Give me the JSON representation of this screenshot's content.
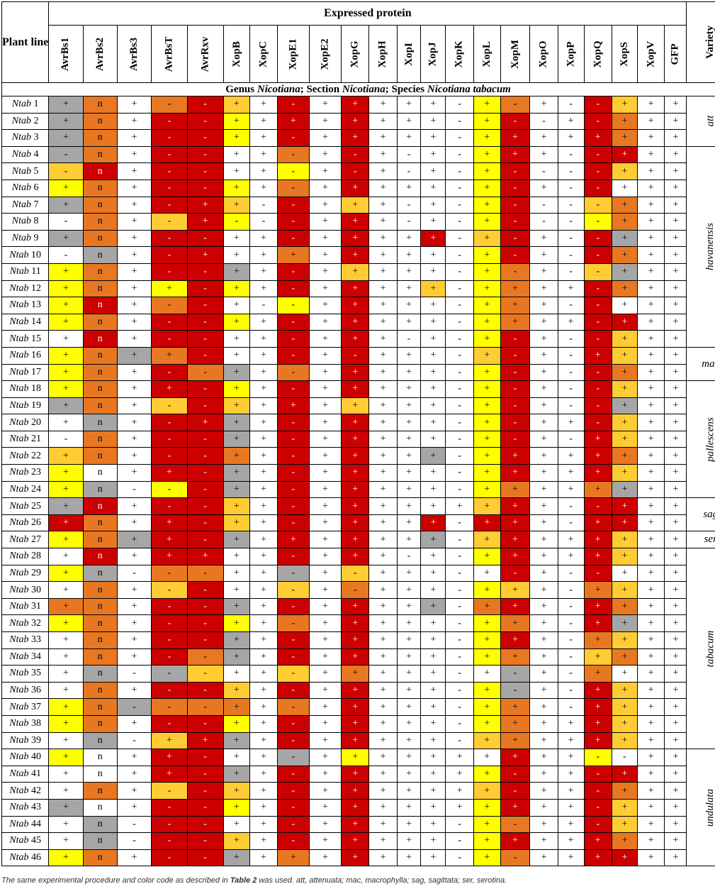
{
  "header": {
    "expressed_protein": "Expressed protein",
    "plant_line": "Plant line",
    "variety": "Variety",
    "proteins": [
      "AvrBs1",
      "AvrBs2",
      "AvrBs3",
      "AvrBsT",
      "AvrRxv",
      "XopB",
      "XopC",
      "XopE1",
      "XopE2",
      "XopG",
      "XopH",
      "XopI",
      "XopJ",
      "XopK",
      "XopL",
      "XopM",
      "XopO",
      "XopP",
      "XopQ",
      "XopS",
      "XopV",
      "GFP"
    ]
  },
  "genus_row": {
    "p1": "Genus ",
    "g": "Nicotiana",
    "p2": "; Section ",
    "s": "Nicotiana",
    "p3": "; Species ",
    "sp": "Nicotiana tabacum"
  },
  "colors": {
    "W": "#ffffff",
    "Y": "#ffff00",
    "y": "#ffcc33",
    "O": "#e87722",
    "R": "#cc0000",
    "G": "#a6a6a6"
  },
  "varieties": [
    {
      "name": "att",
      "rows": 3
    },
    {
      "name": "havanensis",
      "rows": 12
    },
    {
      "name": "mac",
      "rows": 2
    },
    {
      "name": "pallescens",
      "rows": 7
    },
    {
      "name": "sag",
      "rows": 2
    },
    {
      "name": "ser",
      "rows": 1
    },
    {
      "name": "tabacum",
      "rows": 12
    },
    {
      "name": "undulata",
      "rows": 7
    }
  ],
  "rows": [
    {
      "line": "Ntab",
      "num": "1",
      "cells": [
        "+G",
        "nO",
        "+W",
        "-O",
        "-R",
        "+y",
        "+W",
        "-R",
        "+W",
        "+R",
        "+W",
        "+W",
        "+W",
        "-W",
        "+Y",
        "-O",
        "+W",
        "-W",
        "-R",
        "+y",
        "+W",
        "+W"
      ]
    },
    {
      "line": "Ntab",
      "num": "2",
      "cells": [
        "+G",
        "nO",
        "+W",
        "-R",
        "-R",
        "+Y",
        "+W",
        "+R",
        "+W",
        "+R",
        "+W",
        "+W",
        "+W",
        "-W",
        "+Y",
        "-R",
        "-W",
        "+W",
        "-R",
        "+O",
        "+W",
        "+W"
      ]
    },
    {
      "line": "Ntab",
      "num": "3",
      "cells": [
        "+G",
        "nO",
        "+W",
        "-R",
        "-R",
        "+Y",
        "+W",
        "-R",
        "+W",
        "+R",
        "+W",
        "+W",
        "+W",
        "-W",
        "+Y",
        "+R",
        "+W",
        "+W",
        "+R",
        "+O",
        "+W",
        "+W"
      ]
    },
    {
      "line": "Ntab",
      "num": "4",
      "cells": [
        "-G",
        "nO",
        "+W",
        "-R",
        "-R",
        "+W",
        "+W",
        "-O",
        "+W",
        "-R",
        "+W",
        "-W",
        "+W",
        "-W",
        "+Y",
        "+R",
        "+W",
        "-W",
        "-R",
        "+R",
        "+W",
        "+W"
      ]
    },
    {
      "line": "Ntab",
      "num": "5",
      "cells": [
        "-y",
        "nR",
        "+W",
        "-R",
        "-R",
        "+W",
        "+W",
        "-Y",
        "+W",
        "-R",
        "+W",
        "-W",
        "+W",
        "-W",
        "+Y",
        "-R",
        "-W",
        "-W",
        "-R",
        "+y",
        "+W",
        "+W"
      ]
    },
    {
      "line": "Ntab",
      "num": "6",
      "cells": [
        "+Y",
        "nO",
        "+W",
        "-R",
        "-R",
        "+Y",
        "+W",
        "-O",
        "+W",
        "+R",
        "+W",
        "+W",
        "+W",
        "-W",
        "+Y",
        "-R",
        "+W",
        "-W",
        "-R",
        "+W",
        "+W",
        "+W"
      ]
    },
    {
      "line": "Ntab",
      "num": "7",
      "cells": [
        "+G",
        "nO",
        "+W",
        "-R",
        "+R",
        "+y",
        "-W",
        "-R",
        "+W",
        "+y",
        "+W",
        "-W",
        "+W",
        "-W",
        "+Y",
        "-R",
        "-W",
        "-W",
        "-y",
        "+O",
        "+W",
        "+W"
      ]
    },
    {
      "line": "Ntab",
      "num": "8",
      "cells": [
        "-W",
        "nO",
        "+W",
        "-y",
        "+R",
        "-Y",
        "-W",
        "-R",
        "+W",
        "+R",
        "+W",
        "-W",
        "+W",
        "-W",
        "+Y",
        "-R",
        "-W",
        "-W",
        "-Y",
        "+O",
        "+W",
        "+W"
      ]
    },
    {
      "line": "Ntab",
      "num": "9",
      "cells": [
        "+G",
        "nO",
        "+W",
        "-R",
        "-R",
        "+W",
        "+W",
        "-R",
        "+W",
        "+R",
        "+W",
        "+W",
        "+R",
        "-W",
        "+y",
        "-R",
        "+W",
        "-W",
        "-R",
        "+G",
        "+W",
        "+W"
      ]
    },
    {
      "line": "Ntab",
      "num": "10",
      "cells": [
        "-W",
        "nG",
        "+W",
        "-R",
        "+R",
        "+W",
        "+W",
        "+O",
        "+W",
        "+R",
        "+W",
        "+W",
        "+W",
        "-W",
        "+Y",
        "-R",
        "+W",
        "-W",
        "-R",
        "+O",
        "+W",
        "+W"
      ]
    },
    {
      "line": "Ntab",
      "num": "11",
      "cells": [
        "+Y",
        "nO",
        "+W",
        "-R",
        "-R",
        "+G",
        "+W",
        "-R",
        "+W",
        "+y",
        "+W",
        "+W",
        "+W",
        "-W",
        "+Y",
        "-O",
        "+W",
        "-W",
        "-y",
        "+G",
        "+W",
        "+W"
      ]
    },
    {
      "line": "Ntab",
      "num": "12",
      "cells": [
        "+Y",
        "nO",
        "+W",
        "+Y",
        "-R",
        "+Y",
        "+W",
        "-R",
        "+W",
        "+R",
        "+W",
        "+W",
        "+y",
        "-W",
        "+Y",
        "+O",
        "+W",
        "+W",
        "-R",
        "+O",
        "+W",
        "+W"
      ]
    },
    {
      "line": "Ntab",
      "num": "13",
      "cells": [
        "+Y",
        "nR",
        "+W",
        "-O",
        "-R",
        "+W",
        "-W",
        "-Y",
        "+W",
        "+R",
        "+W",
        "+W",
        "+W",
        "-W",
        "+Y",
        "+O",
        "+W",
        "-W",
        "-R",
        "+W",
        "+W",
        "+W"
      ]
    },
    {
      "line": "Ntab",
      "num": "14",
      "cells": [
        "+Y",
        "nO",
        "+W",
        "-R",
        "-R",
        "+Y",
        "+W",
        "-R",
        "+W",
        "+R",
        "+W",
        "+W",
        "+W",
        "-W",
        "+Y",
        "+O",
        "+W",
        "+W",
        "-R",
        "+R",
        "+W",
        "+W"
      ]
    },
    {
      "line": "Ntab",
      "num": "15",
      "cells": [
        "+W",
        "nR",
        "+W",
        "-R",
        "-R",
        "+W",
        "+W",
        "-R",
        "+W",
        "+R",
        "+W",
        "-W",
        "+W",
        "-W",
        "+Y",
        "-R",
        "+W",
        "-W",
        "-R",
        "+y",
        "+W",
        "+W"
      ]
    },
    {
      "line": "Ntab",
      "num": "16",
      "cells": [
        "+Y",
        "nO",
        "+G",
        "+O",
        "-R",
        "+W",
        "+W",
        "-R",
        "+W",
        "-R",
        "+W",
        "+W",
        "+W",
        "-W",
        "+y",
        "-R",
        "+W",
        "-W",
        "+R",
        "+y",
        "+W",
        "+W"
      ]
    },
    {
      "line": "Ntab",
      "num": "17",
      "cells": [
        "+Y",
        "nO",
        "+W",
        "-R",
        "-O",
        "+G",
        "+W",
        "-O",
        "+W",
        "+R",
        "+W",
        "+W",
        "+W",
        "-W",
        "+Y",
        "-R",
        "+W",
        "-W",
        "-R",
        "+O",
        "+W",
        "+W"
      ]
    },
    {
      "line": "Ntab",
      "num": "18",
      "cells": [
        "+Y",
        "nO",
        "+W",
        "+R",
        "-R",
        "+Y",
        "+W",
        "-R",
        "+W",
        "+R",
        "+W",
        "+W",
        "+W",
        "-W",
        "+Y",
        "-R",
        "+W",
        "-W",
        "-R",
        "+y",
        "+W",
        "+W"
      ]
    },
    {
      "line": "Ntab",
      "num": "19",
      "cells": [
        "+G",
        "nO",
        "+W",
        "-y",
        "-R",
        "+y",
        "+W",
        "+R",
        "+W",
        "+y",
        "+W",
        "+W",
        "+W",
        "-W",
        "+Y",
        "-R",
        "+W",
        "-W",
        "-R",
        "+G",
        "+W",
        "+W"
      ]
    },
    {
      "line": "Ntab",
      "num": "20",
      "cells": [
        "+W",
        "nG",
        "+W",
        "-R",
        "+R",
        "+G",
        "+W",
        "-R",
        "+W",
        "+R",
        "+W",
        "+W",
        "+W",
        "-W",
        "+Y",
        "-R",
        "+W",
        "+W",
        "-R",
        "+y",
        "+W",
        "+W"
      ]
    },
    {
      "line": "Ntab",
      "num": "21",
      "cells": [
        "-W",
        "nO",
        "+W",
        "-R",
        "-R",
        "+G",
        "+W",
        "-R",
        "+W",
        "+R",
        "+W",
        "+W",
        "+W",
        "-W",
        "+Y",
        "-R",
        "+W",
        "-W",
        "+R",
        "+y",
        "+W",
        "+W"
      ]
    },
    {
      "line": "Ntab",
      "num": "22",
      "cells": [
        "+y",
        "nO",
        "+W",
        "-R",
        "-R",
        "+O",
        "+W",
        "-R",
        "+W",
        "+R",
        "+W",
        "+W",
        "+G",
        "-W",
        "+Y",
        "+R",
        "+W",
        "+W",
        "+R",
        "+O",
        "+W",
        "+W"
      ]
    },
    {
      "line": "Ntab",
      "num": "23",
      "cells": [
        "+Y",
        "nW",
        "+W",
        "+R",
        "-R",
        "+G",
        "+W",
        "-R",
        "+W",
        "+R",
        "+W",
        "+W",
        "+W",
        "-W",
        "+Y",
        "+R",
        "+W",
        "+W",
        "+R",
        "+y",
        "+W",
        "+W"
      ]
    },
    {
      "line": "Ntab",
      "num": "24",
      "cells": [
        "+Y",
        "nG",
        "-W",
        "-Y",
        "-R",
        "+G",
        "+W",
        "-R",
        "+W",
        "+R",
        "+W",
        "+W",
        "+W",
        "-W",
        "+Y",
        "+O",
        "+W",
        "+W",
        "+O",
        "+G",
        "+W",
        "+W"
      ]
    },
    {
      "line": "Ntab",
      "num": "25",
      "cells": [
        "+G",
        "nR",
        "+W",
        "-R",
        "-R",
        "+y",
        "+W",
        "-R",
        "+W",
        "+R",
        "+W",
        "+W",
        "+W",
        "+W",
        "+y",
        "+R",
        "+W",
        "-W",
        "-R",
        "+R",
        "+W",
        "+W"
      ]
    },
    {
      "line": "Ntab",
      "num": "26",
      "cells": [
        "+R",
        "nO",
        "+W",
        "+R",
        "-R",
        "+y",
        "+W",
        "-R",
        "+W",
        "+R",
        "+W",
        "+W",
        "+R",
        "-W",
        "+R",
        "+R",
        "+W",
        "-W",
        "+R",
        "+R",
        "+W",
        "+W"
      ]
    },
    {
      "line": "Ntab",
      "num": "27",
      "cells": [
        "+Y",
        "nO",
        "+G",
        "+R",
        "-R",
        "+G",
        "+W",
        "+R",
        "+W",
        "+R",
        "+W",
        "+W",
        "+G",
        "-W",
        "+y",
        "+R",
        "+W",
        "+W",
        "+R",
        "+y",
        "+W",
        "+W"
      ]
    },
    {
      "line": "Ntab",
      "num": "28",
      "cells": [
        "+W",
        "nR",
        "+W",
        "+R",
        "+R",
        "+W",
        "+W",
        "-R",
        "+W",
        "+R",
        "+W",
        "-W",
        "+W",
        "-W",
        "+Y",
        "+R",
        "+W",
        "+W",
        "+R",
        "+y",
        "+W",
        "+W"
      ]
    },
    {
      "line": "Ntab",
      "num": "29",
      "cells": [
        "+Y",
        "nG",
        "-W",
        "-O",
        "-O",
        "+W",
        "+W",
        "-G",
        "+W",
        "-y",
        "+W",
        "+W",
        "+W",
        "-W",
        "+W",
        "-R",
        "+W",
        "-W",
        "-R",
        "+W",
        "+W",
        "+W"
      ]
    },
    {
      "line": "Ntab",
      "num": "30",
      "cells": [
        "+W",
        "nO",
        "+W",
        "-y",
        "-R",
        "+W",
        "+W",
        "-y",
        "+W",
        "-O",
        "+W",
        "+W",
        "+W",
        "-W",
        "+Y",
        "+y",
        "+W",
        "-W",
        "+O",
        "+y",
        "+W",
        "+W"
      ]
    },
    {
      "line": "Ntab",
      "num": "31",
      "cells": [
        "+O",
        "nO",
        "+W",
        "-R",
        "-R",
        "+G",
        "+W",
        "-R",
        "+W",
        "+R",
        "+W",
        "+W",
        "+G",
        "-W",
        "+O",
        "+R",
        "+W",
        "-W",
        "+R",
        "+O",
        "+W",
        "+W"
      ]
    },
    {
      "line": "Ntab",
      "num": "32",
      "cells": [
        "+Y",
        "nO",
        "+W",
        "-R",
        "-R",
        "+Y",
        "+W",
        "-O",
        "+W",
        "+R",
        "+W",
        "+W",
        "+W",
        "-W",
        "+Y",
        "+O",
        "+W",
        "-W",
        "+R",
        "+G",
        "+W",
        "+W"
      ]
    },
    {
      "line": "Ntab",
      "num": "33",
      "cells": [
        "+W",
        "nO",
        "+W",
        "-R",
        "-R",
        "+G",
        "+W",
        "-R",
        "+W",
        "+R",
        "+W",
        "+W",
        "+W",
        "-W",
        "+Y",
        "+R",
        "+W",
        "-W",
        "+O",
        "+y",
        "+W",
        "+W"
      ]
    },
    {
      "line": "Ntab",
      "num": "34",
      "cells": [
        "+W",
        "nO",
        "+W",
        "-R",
        "-O",
        "+G",
        "+W",
        "-R",
        "+W",
        "+R",
        "+W",
        "+W",
        "+W",
        "-W",
        "+Y",
        "+O",
        "+W",
        "-W",
        "+y",
        "+O",
        "+W",
        "+W"
      ]
    },
    {
      "line": "Ntab",
      "num": "35",
      "cells": [
        "+W",
        "nG",
        "-W",
        "-G",
        "-y",
        "+W",
        "+W",
        "-y",
        "+W",
        "+O",
        "+W",
        "+W",
        "+W",
        "-W",
        "+W",
        "-G",
        "+W",
        "-W",
        "+O",
        "+W",
        "+W",
        "+W"
      ]
    },
    {
      "line": "Ntab",
      "num": "36",
      "cells": [
        "+W",
        "nO",
        "+W",
        "-R",
        "-R",
        "+y",
        "+W",
        "-R",
        "+W",
        "+R",
        "+W",
        "+W",
        "+W",
        "-W",
        "+Y",
        "-G",
        "+W",
        "-W",
        "+R",
        "+y",
        "+W",
        "+W"
      ]
    },
    {
      "line": "Ntab",
      "num": "37",
      "cells": [
        "+Y",
        "nO",
        "-G",
        "-O",
        "-O",
        "+O",
        "+W",
        "-O",
        "+W",
        "+R",
        "+W",
        "+W",
        "+W",
        "-W",
        "+Y",
        "+O",
        "+W",
        "-W",
        "+R",
        "+y",
        "+W",
        "+W"
      ]
    },
    {
      "line": "Ntab",
      "num": "38",
      "cells": [
        "+Y",
        "nO",
        "+W",
        "-R",
        "-R",
        "+Y",
        "+W",
        "-R",
        "+W",
        "+R",
        "+W",
        "+W",
        "+W",
        "-W",
        "+Y",
        "+O",
        "+W",
        "+W",
        "+R",
        "+y",
        "+W",
        "+W"
      ]
    },
    {
      "line": "Ntab",
      "num": "39",
      "cells": [
        "+W",
        "nG",
        "-W",
        "+y",
        "+R",
        "+G",
        "+W",
        "-R",
        "+W",
        "+R",
        "+W",
        "+W",
        "+W",
        "-W",
        "+y",
        "+O",
        "+W",
        "+W",
        "+R",
        "+y",
        "+W",
        "+W"
      ]
    },
    {
      "line": "Ntab",
      "num": "40",
      "cells": [
        "+Y",
        "nW",
        "+W",
        "+R",
        "-R",
        "+W",
        "+W",
        "-G",
        "+W",
        "+Y",
        "+W",
        "+W",
        "+W",
        "+W",
        "+W",
        "+R",
        "+W",
        "+W",
        "-Y",
        "-W",
        "+W",
        "+W"
      ]
    },
    {
      "line": "Ntab",
      "num": "41",
      "cells": [
        "+W",
        "nW",
        "+W",
        "+R",
        "-R",
        "+G",
        "+W",
        "-R",
        "+W",
        "+R",
        "+W",
        "+W",
        "+W",
        "+W",
        "+Y",
        "-R",
        "+W",
        "+W",
        "-R",
        "+R",
        "+W",
        "+W"
      ]
    },
    {
      "line": "Ntab",
      "num": "42",
      "cells": [
        "+W",
        "nO",
        "+W",
        "-y",
        "-R",
        "+y",
        "+W",
        "-R",
        "+W",
        "+R",
        "+W",
        "+W",
        "+W",
        "+W",
        "+y",
        "-R",
        "+W",
        "+W",
        "-R",
        "+O",
        "+W",
        "+W"
      ]
    },
    {
      "line": "Ntab",
      "num": "43",
      "cells": [
        "+G",
        "nW",
        "+W",
        "-R",
        "-R",
        "+Y",
        "+W",
        "-R",
        "+W",
        "+R",
        "+W",
        "+W",
        "+W",
        "+W",
        "+Y",
        "+R",
        "+W",
        "+W",
        "-R",
        "+y",
        "+W",
        "+W"
      ]
    },
    {
      "line": "Ntab",
      "num": "44",
      "cells": [
        "+W",
        "nG",
        "-W",
        "-R",
        "-R",
        "+W",
        "+W",
        "-R",
        "+W",
        "+R",
        "+W",
        "+W",
        "+W",
        "-W",
        "+Y",
        "-O",
        "+W",
        "+W",
        "-R",
        "+y",
        "+W",
        "+W"
      ]
    },
    {
      "line": "Ntab",
      "num": "45",
      "cells": [
        "+W",
        "nG",
        "-W",
        "-R",
        "-R",
        "+y",
        "+W",
        "-R",
        "+W",
        "+R",
        "+W",
        "+W",
        "+W",
        "-W",
        "+Y",
        "+R",
        "+W",
        "+W",
        "+R",
        "+O",
        "+W",
        "+W"
      ]
    },
    {
      "line": "Ntab",
      "num": "46",
      "cells": [
        "+Y",
        "nO",
        "+W",
        "-R",
        "-R",
        "+G",
        "+W",
        "+O",
        "+W",
        "+R",
        "+W",
        "+W",
        "+W",
        "-W",
        "+Y",
        "-O",
        "+W",
        "+W",
        "+R",
        "+R",
        "+W",
        "+W"
      ]
    }
  ],
  "footnote": {
    "t1": "The same experimental procedure and color code as described in ",
    "bold": "Table 2",
    "t2": " was used. att, attenuata; mac, macrophylla; sag, sagittata; ser, serotina."
  }
}
